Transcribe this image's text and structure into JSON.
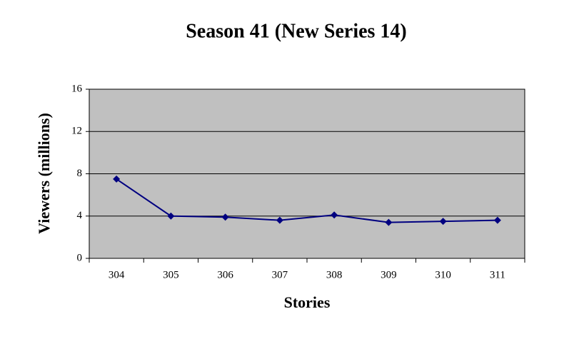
{
  "chart_data": {
    "type": "line",
    "title": "Season 41 (New Series 14)",
    "xlabel": "Stories",
    "ylabel": "Viewers (millions)",
    "categories": [
      "304",
      "305",
      "306",
      "307",
      "308",
      "309",
      "310",
      "311"
    ],
    "series": [
      {
        "name": "Viewers",
        "color": "#000080",
        "values": [
          7.5,
          4.0,
          3.9,
          3.6,
          4.1,
          3.4,
          3.5,
          3.6
        ]
      }
    ],
    "ylim": [
      0,
      16
    ],
    "yticks": [
      0,
      4,
      8,
      12,
      16
    ],
    "grid": true
  }
}
